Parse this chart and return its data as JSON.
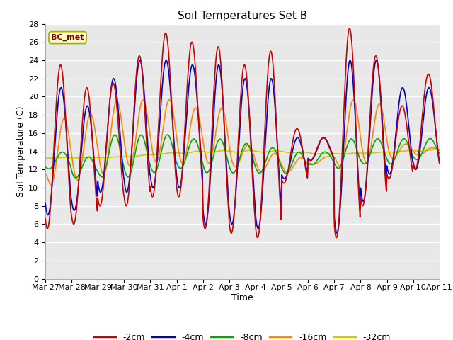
{
  "title": "Soil Temperatures Set B",
  "xlabel": "Time",
  "ylabel": "Soil Temperature (C)",
  "figure_bg_color": "#ffffff",
  "plot_bg_color": "#e8e8e8",
  "ylim": [
    0,
    28
  ],
  "yticks": [
    0,
    2,
    4,
    6,
    8,
    10,
    12,
    14,
    16,
    18,
    20,
    22,
    24,
    26,
    28
  ],
  "legend_label": "BC_met",
  "legend_bg": "#ffffcc",
  "legend_border": "#aaaa00",
  "series_colors": {
    "-2cm": "#cc0000",
    "-4cm": "#0000cc",
    "-8cm": "#00aa00",
    "-16cm": "#ff8800",
    "-32cm": "#cccc00"
  },
  "xtick_labels": [
    "Mar 27",
    "Mar 28",
    "Mar 29",
    "Mar 30",
    "Mar 31",
    "Apr 1",
    "Apr 2",
    "Apr 3",
    "Apr 4",
    "Apr 5",
    "Apr 6",
    "Apr 7",
    "Apr 8",
    "Apr 9",
    "Apr 10",
    "Apr 11"
  ],
  "line_width": 1.2,
  "title_fontsize": 11,
  "axis_label_fontsize": 9,
  "tick_fontsize": 8
}
